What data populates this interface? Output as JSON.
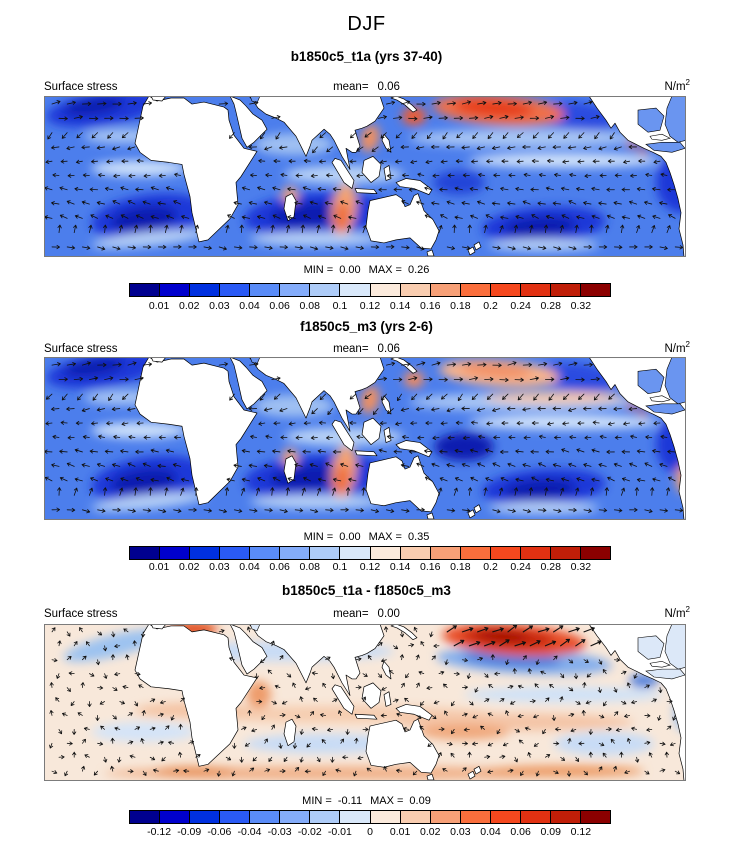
{
  "title": "DJF",
  "panels": [
    {
      "subtitle": "b1850c5_t1a (yrs 37-40)",
      "field_label": "Surface stress",
      "mean_label": "mean=",
      "mean_value": "0.06",
      "units_base": "N/m",
      "units_exp": "2",
      "min_label": "MIN =",
      "min_value": "0.00",
      "max_label": "MAX =",
      "max_value": "0.26",
      "colorbar_labels": [
        "0.01",
        "0.02",
        "0.03",
        "0.04",
        "0.06",
        "0.08",
        "0.1",
        "0.12",
        "0.14",
        "0.16",
        "0.18",
        "0.2",
        "0.24",
        "0.28",
        "0.32"
      ]
    },
    {
      "subtitle": "f1850c5_m3 (yrs 2-6)",
      "field_label": "Surface stress",
      "mean_label": "mean=",
      "mean_value": "0.06",
      "units_base": "N/m",
      "units_exp": "2",
      "min_label": "MIN =",
      "min_value": "0.00",
      "max_label": "MAX =",
      "max_value": "0.35",
      "colorbar_labels": [
        "0.01",
        "0.02",
        "0.03",
        "0.04",
        "0.06",
        "0.08",
        "0.1",
        "0.12",
        "0.14",
        "0.16",
        "0.18",
        "0.2",
        "0.24",
        "0.28",
        "0.32"
      ]
    },
    {
      "subtitle": "b1850c5_t1a - f1850c5_m3",
      "field_label": "Surface stress",
      "mean_label": "mean=",
      "mean_value": "0.00",
      "units_base": "N/m",
      "units_exp": "2",
      "min_label": "MIN =",
      "min_value": "-0.11",
      "max_label": "MAX =",
      "max_value": "0.09",
      "colorbar_labels": [
        "-0.12",
        "-0.09",
        "-0.06",
        "-0.04",
        "-0.03",
        "-0.02",
        "-0.01",
        "0",
        "0.01",
        "0.02",
        "0.03",
        "0.04",
        "0.06",
        "0.09",
        "0.12"
      ]
    }
  ],
  "palette": [
    "#00008F",
    "#0000CD",
    "#0030E0",
    "#2A5AF5",
    "#5A8CF8",
    "#84ACFA",
    "#AECCF8",
    "#D9E8FA",
    "#FBEADC",
    "#F9CDB0",
    "#F7A077",
    "#FA6E3C",
    "#F5481E",
    "#E13112",
    "#C01E08",
    "#8B0000"
  ],
  "chart_data": {
    "type": "heatmap",
    "season": "DJF",
    "field": "Surface stress",
    "units": "N/m^2",
    "projection_note": "global lat-lon vector/contour maps with overlaid wind-stress arrows",
    "palette": [
      "#00008F",
      "#0000CD",
      "#0030E0",
      "#2A5AF5",
      "#5A8CF8",
      "#84ACFA",
      "#AECCF8",
      "#D9E8FA",
      "#FBEADC",
      "#F9CDB0",
      "#F7A077",
      "#FA6E3C",
      "#F5481E",
      "#E13112",
      "#C01E08",
      "#8B0000"
    ],
    "panels": [
      {
        "title": "b1850c5_t1a (yrs 37-40)",
        "mean": 0.06,
        "min": 0.0,
        "max": 0.26,
        "contour_levels": [
          0.01,
          0.02,
          0.03,
          0.04,
          0.06,
          0.08,
          0.1,
          0.12,
          0.14,
          0.16,
          0.18,
          0.2,
          0.24,
          0.28,
          0.32
        ]
      },
      {
        "title": "f1850c5_m3 (yrs 2-6)",
        "mean": 0.06,
        "min": 0.0,
        "max": 0.35,
        "contour_levels": [
          0.01,
          0.02,
          0.03,
          0.04,
          0.06,
          0.08,
          0.1,
          0.12,
          0.14,
          0.16,
          0.18,
          0.2,
          0.24,
          0.28,
          0.32
        ]
      },
      {
        "title": "b1850c5_t1a - f1850c5_m3",
        "mean": 0.0,
        "min": -0.11,
        "max": 0.09,
        "contour_levels": [
          -0.12,
          -0.09,
          -0.06,
          -0.04,
          -0.03,
          -0.02,
          -0.01,
          0,
          0.01,
          0.02,
          0.03,
          0.04,
          0.06,
          0.09,
          0.12
        ]
      }
    ]
  }
}
